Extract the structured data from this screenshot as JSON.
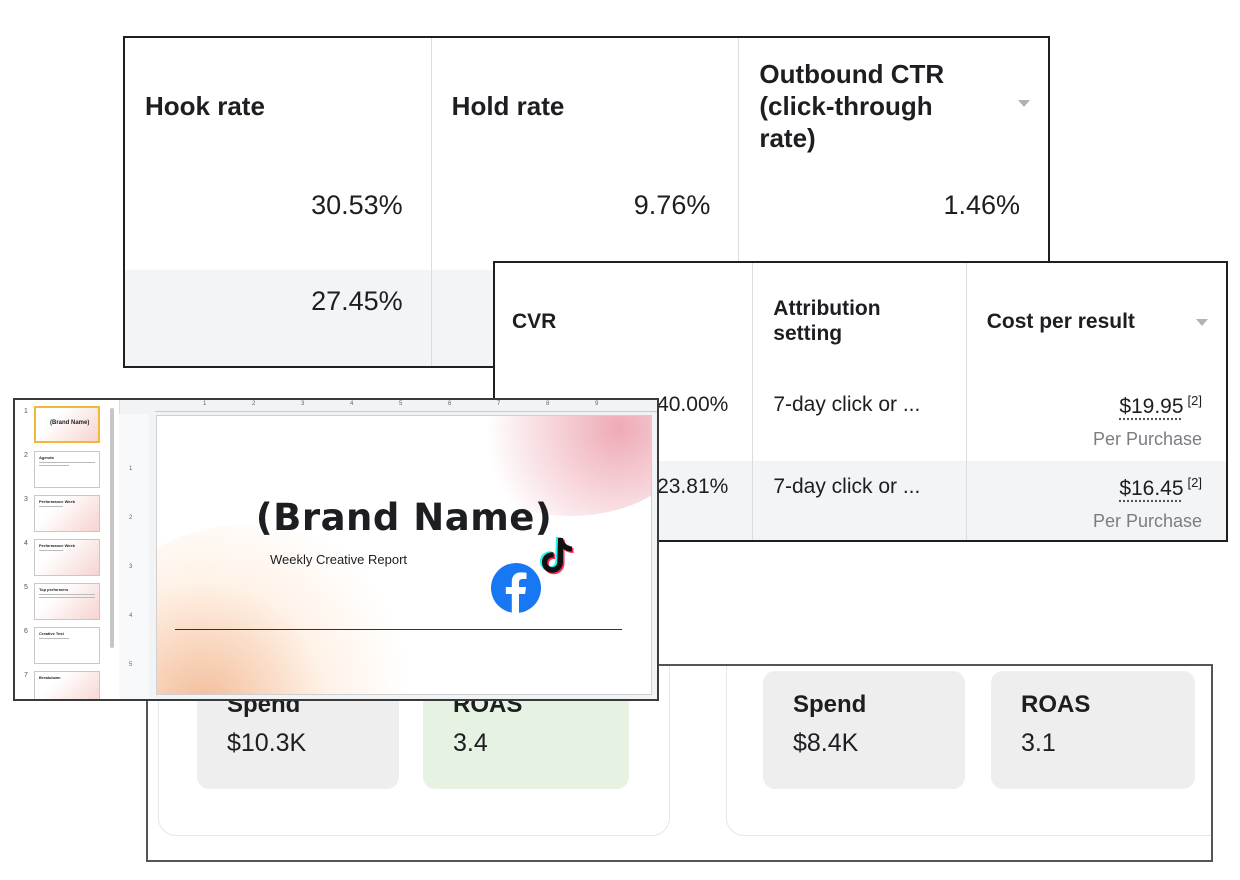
{
  "table_a": {
    "headers": [
      {
        "label": "Hook rate"
      },
      {
        "label": "Hold rate"
      },
      {
        "label": "Outbound CTR (click-through rate)"
      }
    ],
    "rows": [
      [
        "30.53%",
        "9.76%",
        "1.46%"
      ],
      [
        "27.45%",
        "",
        ""
      ]
    ]
  },
  "table_b": {
    "headers": [
      {
        "label": "CVR"
      },
      {
        "label": "Attribution setting"
      },
      {
        "label": "Cost per result"
      }
    ],
    "rows": [
      {
        "cvr": "40.00%",
        "attribution": "7-day click or ...",
        "cost": "$19.95",
        "cost_note": "[2]",
        "cost_sub": "Per Purchase"
      },
      {
        "cvr": "23.81%",
        "attribution": "7-day click or ...",
        "cost": "$16.45",
        "cost_note": "[2]",
        "cost_sub": "Per Purchase"
      }
    ]
  },
  "kpis": {
    "group1": [
      {
        "label": "Spend",
        "value": "$10.3K"
      },
      {
        "label": "ROAS",
        "value": "3.4",
        "highlight": "#e6f2e2"
      }
    ],
    "group2": [
      {
        "label": "Spend",
        "value": "$8.4K"
      },
      {
        "label": "ROAS",
        "value": "3.1"
      }
    ]
  },
  "slides": {
    "title": "(Brand Name)",
    "subtitle": "Weekly Creative Report",
    "thumbnails": [
      {
        "num": "1",
        "title": "(Brand Name)"
      },
      {
        "num": "2",
        "title": "Agenda"
      },
      {
        "num": "3",
        "title": "Performance Week"
      },
      {
        "num": "4",
        "title": "Performance Week"
      },
      {
        "num": "5",
        "title": "Top performers"
      },
      {
        "num": "6",
        "title": "Creative Test"
      },
      {
        "num": "7",
        "title": "Breakdown"
      }
    ],
    "ruler_top": [
      "1",
      "2",
      "3",
      "4",
      "5",
      "6",
      "7",
      "8",
      "9"
    ],
    "ruler_left": [
      "1",
      "2",
      "3",
      "4",
      "5"
    ],
    "icons": [
      "facebook-icon",
      "tiktok-icon"
    ],
    "colors": {
      "facebook": "#1877f2",
      "tiktok_cyan": "#25f4ee",
      "tiktok_red": "#fe2c55"
    }
  }
}
